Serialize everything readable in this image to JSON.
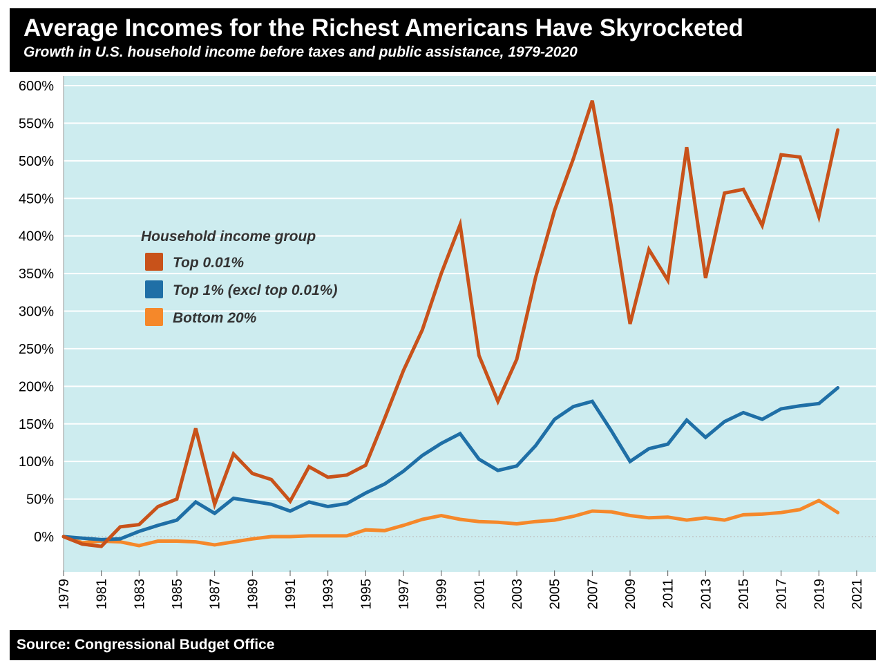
{
  "header": {
    "title": "Average Incomes for the Richest Americans Have Skyrocketed",
    "subtitle": "Growth in U.S. household income before taxes and public assistance, 1979-2020"
  },
  "footer": {
    "source": "Source: Congressional Budget Office"
  },
  "colors": {
    "plot_background": "#cdecef",
    "gridline": "#ffffff",
    "top_001": "#c8521a",
    "top_1": "#1f6fa6",
    "bottom_20": "#f5882a"
  },
  "chart_data": {
    "type": "line",
    "title": "Average Incomes for the Richest Americans Have Skyrocketed",
    "subtitle": "Growth in U.S. household income before taxes and public assistance, 1979-2020",
    "xlabel": "",
    "ylabel": "",
    "x": [
      1979,
      1980,
      1981,
      1982,
      1983,
      1984,
      1985,
      1986,
      1987,
      1988,
      1989,
      1990,
      1991,
      1992,
      1993,
      1994,
      1995,
      1996,
      1997,
      1998,
      1999,
      2000,
      2001,
      2002,
      2003,
      2004,
      2005,
      2006,
      2007,
      2008,
      2009,
      2010,
      2011,
      2012,
      2013,
      2014,
      2015,
      2016,
      2017,
      2018,
      2019,
      2020
    ],
    "x_ticks": [
      "1979",
      "1981",
      "1983",
      "1985",
      "1987",
      "1989",
      "1991",
      "1993",
      "1995",
      "1997",
      "1999",
      "2001",
      "2003",
      "2005",
      "2007",
      "2009",
      "2011",
      "2013",
      "2015",
      "2017",
      "2019",
      "2021"
    ],
    "y_ticks": [
      "0%",
      "50%",
      "100%",
      "150%",
      "200%",
      "250%",
      "300%",
      "350%",
      "400%",
      "450%",
      "500%",
      "550%",
      "600%"
    ],
    "xlim": [
      1979,
      2021
    ],
    "ylim": [
      -50,
      600
    ],
    "grid": true,
    "legend_title": "Household income group",
    "legend_position": "upper-left",
    "series": [
      {
        "name": "Top 0.01%",
        "values": [
          0,
          -10,
          -13,
          13,
          16,
          40,
          50,
          144,
          43,
          110,
          84,
          76,
          47,
          93,
          79,
          82,
          95,
          157,
          221,
          275,
          350,
          415,
          241,
          180,
          236,
          345,
          434,
          503,
          580,
          440,
          283,
          382,
          341,
          518,
          344,
          457,
          462,
          414,
          508,
          505,
          426,
          541
        ]
      },
      {
        "name": "Top 1% (excl top 0.01%)",
        "values": [
          0,
          -2,
          -4,
          -3,
          7,
          15,
          22,
          46,
          31,
          51,
          47,
          43,
          34,
          46,
          40,
          44,
          58,
          70,
          87,
          108,
          124,
          137,
          103,
          88,
          94,
          121,
          156,
          173,
          180,
          141,
          100,
          117,
          123,
          155,
          132,
          153,
          165,
          156,
          170,
          174,
          177,
          198
        ]
      },
      {
        "name": "Bottom 20%",
        "values": [
          0,
          -8,
          -6,
          -7,
          -12,
          -6,
          -6,
          -7,
          -11,
          -7,
          -3,
          0,
          0,
          1,
          1,
          1,
          9,
          8,
          15,
          23,
          28,
          23,
          20,
          19,
          17,
          20,
          22,
          27,
          34,
          33,
          28,
          25,
          26,
          22,
          25,
          22,
          29,
          30,
          32,
          36,
          48,
          32
        ]
      }
    ]
  }
}
